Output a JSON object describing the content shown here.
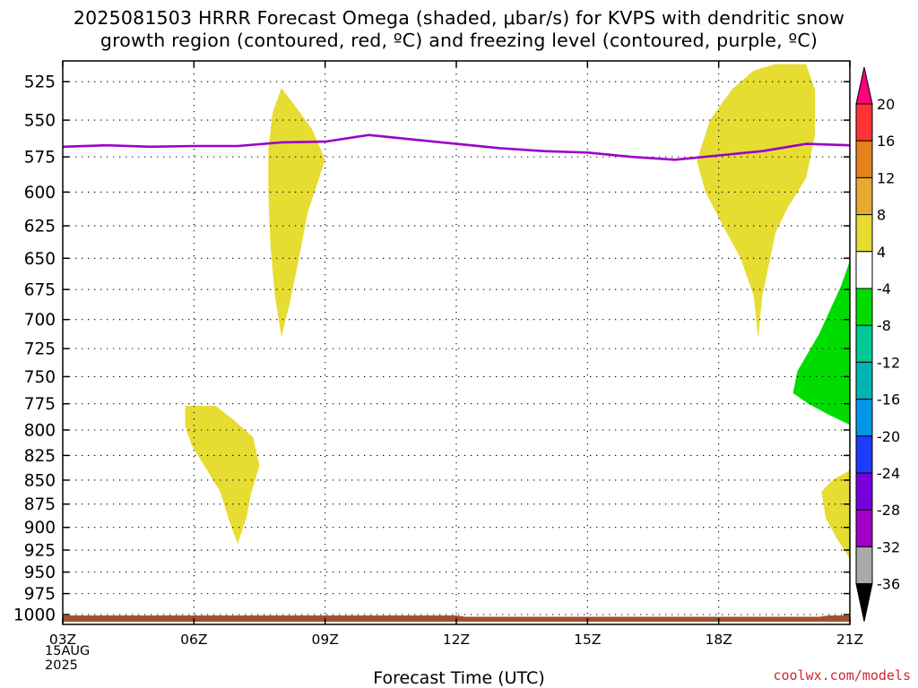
{
  "title": {
    "line1": "2025081503 HRRR Forecast Omega (shaded, μbar/s) for KVPS with dendritic snow",
    "line2": "growth region (contoured, red, ºC) and freezing level (contoured, purple, ºC)"
  },
  "credit": "coolwx.com/models",
  "chart_data": {
    "type": "time-height cross-section",
    "xlabel": "Forecast Time (UTC)",
    "x_ticks": [
      "03Z",
      "06Z",
      "09Z",
      "12Z",
      "15Z",
      "18Z",
      "21Z"
    ],
    "x_first_tick_date": [
      "15AUG",
      "2025"
    ],
    "x_range_hours": [
      3,
      21
    ],
    "y_ticks": [
      525,
      550,
      575,
      600,
      625,
      650,
      675,
      700,
      725,
      750,
      775,
      800,
      825,
      850,
      875,
      900,
      925,
      950,
      975,
      1000
    ],
    "y_range_mb": [
      512,
      1012
    ],
    "y_scale": "log-pressure (inverted)",
    "grid": "dotted",
    "freezing_level": {
      "color": "#9a00cc",
      "points": [
        [
          3,
          568
        ],
        [
          4,
          567
        ],
        [
          5,
          568
        ],
        [
          6,
          567.5
        ],
        [
          7,
          567.5
        ],
        [
          8,
          565
        ],
        [
          9,
          564.5
        ],
        [
          10,
          560
        ],
        [
          11,
          563
        ],
        [
          12,
          566
        ],
        [
          13,
          569
        ],
        [
          14,
          571
        ],
        [
          15,
          572
        ],
        [
          16,
          575
        ],
        [
          17,
          577
        ],
        [
          18,
          574
        ],
        [
          19,
          571
        ],
        [
          20,
          566
        ],
        [
          21,
          567
        ]
      ]
    },
    "terrain_color": "#a0522d",
    "shaded_regions": [
      {
        "label": "omega 4 to 8",
        "color": "#e6dc32",
        "points": [
          [
            8.0,
            529
          ],
          [
            8.3,
            540
          ],
          [
            8.7,
            556
          ],
          [
            9.0,
            577
          ],
          [
            8.6,
            615
          ],
          [
            8.4,
            650
          ],
          [
            8.2,
            685
          ],
          [
            8.0,
            715
          ],
          [
            7.85,
            680
          ],
          [
            7.75,
            640
          ],
          [
            7.7,
            600
          ],
          [
            7.7,
            570
          ],
          [
            7.8,
            545
          ]
        ]
      },
      {
        "label": "omega 4 to 8",
        "color": "#e6dc32",
        "points": [
          [
            19.3,
            514
          ],
          [
            20.0,
            514
          ],
          [
            20.2,
            530
          ],
          [
            20.2,
            560
          ],
          [
            20.0,
            590
          ],
          [
            19.6,
            610
          ],
          [
            19.3,
            630
          ],
          [
            19.0,
            680
          ],
          [
            18.9,
            716
          ],
          [
            18.8,
            680
          ],
          [
            18.5,
            650
          ],
          [
            18.1,
            625
          ],
          [
            17.7,
            600
          ],
          [
            17.5,
            578
          ],
          [
            17.8,
            550
          ],
          [
            18.3,
            530
          ],
          [
            18.8,
            518
          ]
        ]
      },
      {
        "label": "omega 4 to 8",
        "color": "#e6dc32",
        "points": [
          [
            5.8,
            777
          ],
          [
            6.0,
            777
          ],
          [
            6.5,
            777
          ],
          [
            6.9,
            790
          ],
          [
            7.35,
            807
          ],
          [
            7.5,
            835
          ],
          [
            7.3,
            865
          ],
          [
            7.2,
            890
          ],
          [
            7.0,
            918
          ],
          [
            6.8,
            892
          ],
          [
            6.6,
            862
          ],
          [
            6.3,
            840
          ],
          [
            5.95,
            815
          ],
          [
            5.8,
            797
          ]
        ]
      },
      {
        "label": "omega 4 to 8",
        "color": "#e6dc32",
        "points": [
          [
            21.0,
            840
          ],
          [
            20.6,
            850
          ],
          [
            20.35,
            862
          ],
          [
            20.45,
            890
          ],
          [
            20.7,
            912
          ],
          [
            21.0,
            935
          ]
        ]
      },
      {
        "label": "omega -8 to -4",
        "color": "#00dc00",
        "points": [
          [
            21.0,
            652
          ],
          [
            20.8,
            672
          ],
          [
            20.3,
            712
          ],
          [
            19.8,
            745
          ],
          [
            19.7,
            765
          ],
          [
            20.05,
            775
          ],
          [
            20.5,
            785
          ],
          [
            21.0,
            795
          ]
        ]
      }
    ]
  },
  "colorbar": {
    "levels": [
      "20",
      "16",
      "12",
      "8",
      "4",
      "-4",
      "-8",
      "-12",
      "-16",
      "-20",
      "-24",
      "-28",
      "-32",
      "-36"
    ],
    "bands": [
      "#ff3333",
      "#e6821e",
      "#e6aa32",
      "#e6dc32",
      "#ffffff",
      "#00dc00",
      "#00c896",
      "#00b4b4",
      "#0096e6",
      "#1e3cff",
      "#7800dc",
      "#a000c8",
      "#aaaaaa"
    ],
    "top_triangle_color": "#ff007f",
    "bottom_triangle_color": "#000000"
  }
}
